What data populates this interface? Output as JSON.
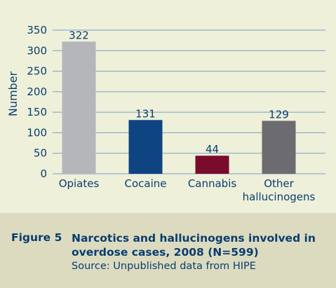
{
  "chart_data": {
    "type": "bar",
    "categories": [
      "Opiates",
      "Cocaine",
      "Cannabis",
      "Other hallucinogens"
    ],
    "category_lines": [
      [
        "Opiates"
      ],
      [
        "Cocaine"
      ],
      [
        "Cannabis"
      ],
      [
        "Other",
        "hallucinogens"
      ]
    ],
    "values": [
      322,
      131,
      44,
      129
    ],
    "value_labels": [
      "322",
      "131",
      "44",
      "129"
    ],
    "bar_colors": [
      "#b5b6b9",
      "#0e4482",
      "#7a0b2d",
      "#6b6b70"
    ],
    "ylabel": "Number",
    "ylim": [
      0,
      350
    ],
    "yticks": [
      0,
      50,
      100,
      150,
      200,
      250,
      300,
      350
    ],
    "grid": true
  },
  "caption": {
    "figure_label": "Figure 5",
    "title": "Narcotics and hallucinogens involved in overdose cases, 2008 (N=599)",
    "source": "Source: Unpublished data from HIPE"
  },
  "colors": {
    "plot_background": "#eef0da",
    "caption_background": "#dcdbc0",
    "text": "#0b3d6e",
    "gridline": "#7a9fc1"
  }
}
